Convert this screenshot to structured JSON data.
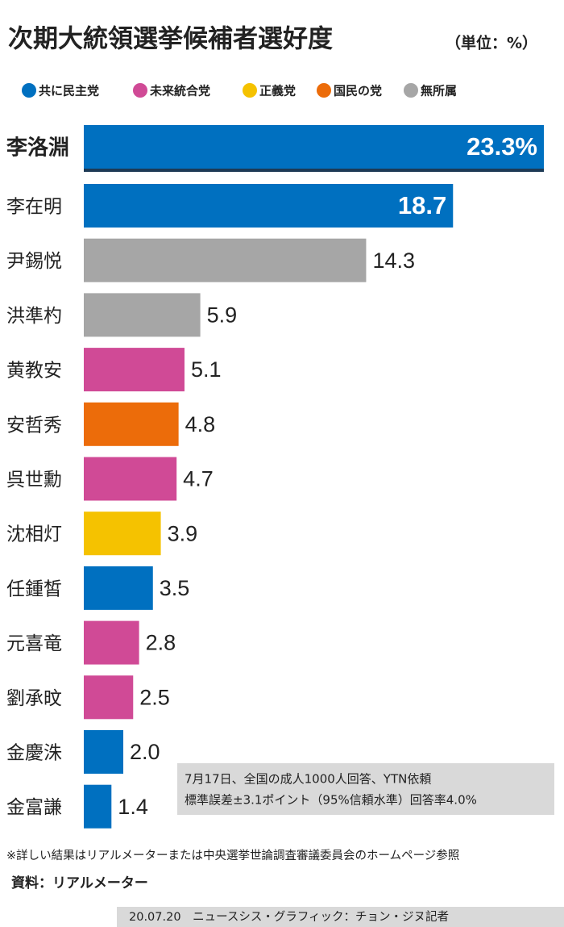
{
  "chart_data": {
    "type": "bar",
    "orientation": "horizontal",
    "title": "次期大統領選挙候補者選好度",
    "subtitle": "（単位：%）",
    "legend": [
      {
        "name": "共に民主党",
        "color": "#0070c0"
      },
      {
        "name": "未来統合党",
        "color": "#d04a96"
      },
      {
        "name": "正義党",
        "color": "#f5c200"
      },
      {
        "name": "国民の党",
        "color": "#ec6c0a"
      },
      {
        "name": "無所属",
        "color": "#a6a6a6"
      }
    ],
    "categories": [
      "李洛淵",
      "李在明",
      "尹錫悦",
      "洪準杓",
      "黄教安",
      "安哲秀",
      "呉世勳",
      "沈相灯",
      "任鍾皙",
      "元喜竜",
      "劉承旼",
      "金慶洙",
      "金富謙"
    ],
    "values": [
      23.3,
      18.7,
      14.3,
      5.9,
      5.1,
      4.8,
      4.7,
      3.9,
      3.5,
      2.8,
      2.5,
      2.0,
      1.4
    ],
    "value_labels": [
      "23.3%",
      "18.7",
      "14.3",
      "5.9",
      "5.1",
      "4.8",
      "4.7",
      "3.9",
      "3.5",
      "2.8",
      "2.5",
      "2.0",
      "1.4"
    ],
    "colors": [
      "#0070c0",
      "#0070c0",
      "#a6a6a6",
      "#a6a6a6",
      "#d04a96",
      "#ec6c0a",
      "#d04a96",
      "#f5c200",
      "#0070c0",
      "#d04a96",
      "#d04a96",
      "#0070c0",
      "#0070c0"
    ],
    "notes": [
      "7月17日、全国の成人1000人回答、YTN依頼",
      "標準誤差±3.1ポイント（95%信頼水準）回答率4.0%"
    ]
  },
  "footnote": "※詳しい結果はリアルメーターまたは中央選挙世論調査審議委員会のホームページ参照",
  "source": "資料：リアルメーター",
  "credit": "20.07.20　ニュースシス・グラフィック：チョン・ジヌ記者"
}
